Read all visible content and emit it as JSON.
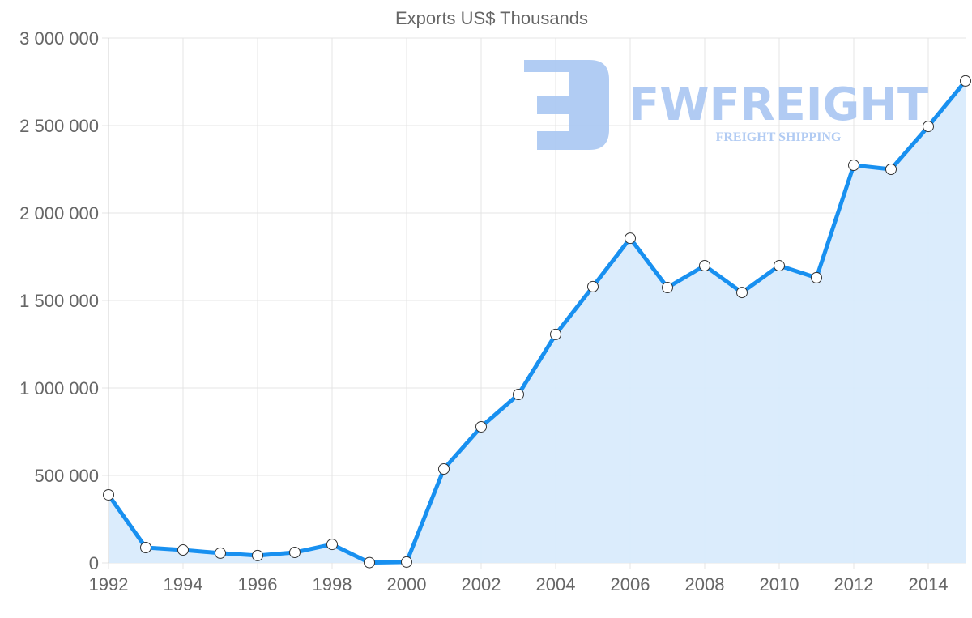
{
  "chart_data": {
    "type": "area",
    "title": "Exports US$ Thousands",
    "xlabel": "",
    "ylabel": "",
    "x": [
      1992,
      1993,
      1994,
      1995,
      1996,
      1997,
      1998,
      1999,
      2000,
      2001,
      2002,
      2003,
      2004,
      2005,
      2006,
      2007,
      2008,
      2009,
      2010,
      2011,
      2012,
      2013,
      2014,
      2015
    ],
    "series": [
      {
        "name": "Exports US$ Thousands",
        "values": [
          389000,
          88000,
          74000,
          56000,
          42000,
          60000,
          106000,
          2000,
          5000,
          537000,
          778000,
          963000,
          1306000,
          1579000,
          1856000,
          1574000,
          1699000,
          1546000,
          1699000,
          1630000,
          2273000,
          2250000,
          2495000,
          2755000
        ]
      }
    ],
    "ylim": [
      0,
      3000000
    ],
    "xlim": [
      1992,
      2015
    ],
    "y_ticks": [
      0,
      500000,
      1000000,
      1500000,
      2000000,
      2500000,
      3000000
    ],
    "y_tick_labels": [
      "0",
      "500 000",
      "1 000 000",
      "1 500 000",
      "2 000 000",
      "2 500 000",
      "3 000 000"
    ],
    "x_ticks": [
      1992,
      1994,
      1996,
      1998,
      2000,
      2002,
      2004,
      2006,
      2008,
      2010,
      2012,
      2014
    ],
    "x_tick_labels": [
      "1992",
      "1994",
      "1996",
      "1998",
      "2000",
      "2002",
      "2004",
      "2006",
      "2008",
      "2010",
      "2012",
      "2014"
    ],
    "grid": true,
    "legend": "none",
    "colors": {
      "line": "#1890f0",
      "fill": "#d9ebfc",
      "grid": "#e4e4e4",
      "watermark": "#a9c6f2"
    }
  },
  "watermark": {
    "brand": "FWFREIGHT",
    "tagline": "FREIGHT SHIPPING"
  }
}
